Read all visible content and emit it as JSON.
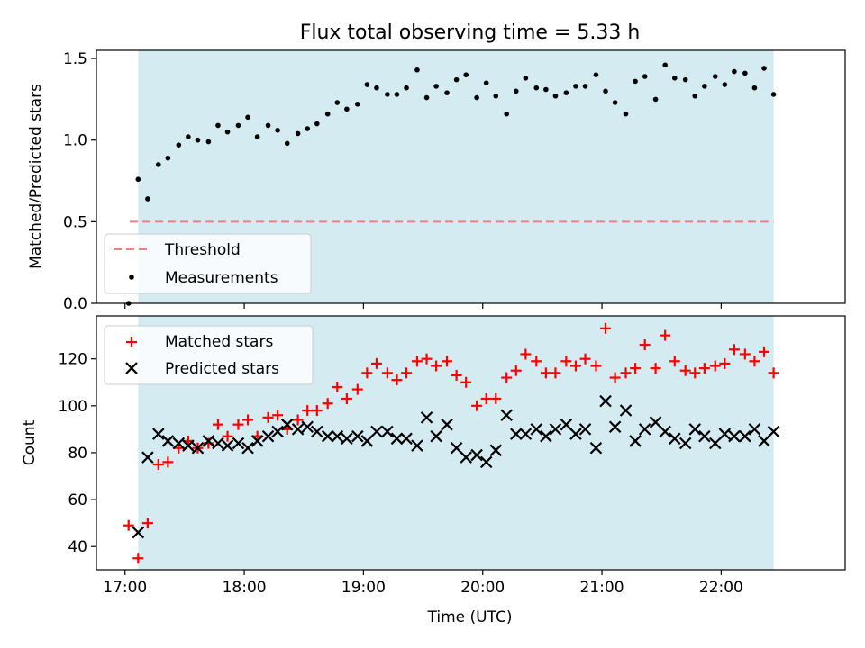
{
  "chart_data": [
    {
      "type": "scatter",
      "title": "Flux total observing time = 5.33 h",
      "xlabel": "",
      "ylabel": "Matched/Predicted stars",
      "x_ticks": [
        "17:00",
        "18:00",
        "19:00",
        "20:00",
        "21:00",
        "22:00"
      ],
      "y_ticks": [
        "0.0",
        "0.5",
        "1.0",
        "1.5"
      ],
      "xlim": [
        16.76,
        23.04
      ],
      "ylim": [
        0.0,
        1.55
      ],
      "shaded_span": [
        17.11,
        22.44
      ],
      "shade_color": "#add8e6",
      "legend_position": "lower-left",
      "threshold": {
        "name": "Threshold",
        "value": 0.5,
        "x_range": [
          17.04,
          22.44
        ],
        "color": "#f08080"
      },
      "series": [
        {
          "name": "Measurements",
          "color": "#000000",
          "x": [
            17.03,
            17.11,
            17.19,
            17.28,
            17.36,
            17.45,
            17.53,
            17.61,
            17.7,
            17.78,
            17.86,
            17.95,
            18.03,
            18.11,
            18.2,
            18.28,
            18.36,
            18.45,
            18.53,
            18.61,
            18.7,
            18.78,
            18.86,
            18.95,
            19.03,
            19.11,
            19.2,
            19.28,
            19.36,
            19.45,
            19.53,
            19.61,
            19.7,
            19.78,
            19.86,
            19.95,
            20.03,
            20.11,
            20.2,
            20.28,
            20.36,
            20.45,
            20.53,
            20.61,
            20.7,
            20.78,
            20.86,
            20.95,
            21.03,
            21.11,
            21.2,
            21.28,
            21.36,
            21.45,
            21.53,
            21.61,
            21.7,
            21.78,
            21.86,
            21.95,
            22.03,
            22.11,
            22.2,
            22.28,
            22.36,
            22.44
          ],
          "y": [
            0.0,
            0.76,
            0.64,
            0.85,
            0.89,
            0.97,
            1.02,
            1.0,
            0.99,
            1.09,
            1.05,
            1.09,
            1.14,
            1.02,
            1.09,
            1.06,
            0.98,
            1.04,
            1.07,
            1.1,
            1.16,
            1.23,
            1.19,
            1.22,
            1.34,
            1.32,
            1.28,
            1.28,
            1.32,
            1.43,
            1.26,
            1.33,
            1.29,
            1.37,
            1.4,
            1.26,
            1.35,
            1.27,
            1.16,
            1.3,
            1.38,
            1.32,
            1.31,
            1.27,
            1.29,
            1.33,
            1.33,
            1.4,
            1.3,
            1.23,
            1.16,
            1.36,
            1.39,
            1.25,
            1.46,
            1.38,
            1.37,
            1.27,
            1.33,
            1.39,
            1.34,
            1.42,
            1.41,
            1.32,
            1.44,
            1.28
          ]
        }
      ]
    },
    {
      "type": "scatter",
      "title": "",
      "xlabel": "Time (UTC)",
      "ylabel": "Count",
      "x_ticks": [
        "17:00",
        "18:00",
        "19:00",
        "20:00",
        "21:00",
        "22:00"
      ],
      "y_ticks": [
        "40",
        "60",
        "80",
        "100",
        "120"
      ],
      "xlim": [
        16.76,
        23.04
      ],
      "ylim": [
        30.1,
        138.3
      ],
      "shaded_span": [
        17.11,
        22.44
      ],
      "shade_color": "#add8e6",
      "legend_position": "top-left",
      "series": [
        {
          "name": "Matched stars",
          "marker": "+",
          "color": "#ff0000",
          "x": [
            17.03,
            17.11,
            17.19,
            17.28,
            17.36,
            17.45,
            17.53,
            17.61,
            17.7,
            17.78,
            17.86,
            17.95,
            18.03,
            18.11,
            18.2,
            18.28,
            18.36,
            18.45,
            18.53,
            18.61,
            18.7,
            18.78,
            18.86,
            18.95,
            19.03,
            19.11,
            19.2,
            19.28,
            19.36,
            19.45,
            19.53,
            19.61,
            19.7,
            19.78,
            19.86,
            19.95,
            20.03,
            20.11,
            20.2,
            20.28,
            20.36,
            20.45,
            20.53,
            20.61,
            20.7,
            20.78,
            20.86,
            20.95,
            21.03,
            21.11,
            21.2,
            21.28,
            21.36,
            21.45,
            21.53,
            21.61,
            21.7,
            21.78,
            21.86,
            21.95,
            22.03,
            22.11,
            22.2,
            22.28,
            22.36,
            22.44
          ],
          "y": [
            49,
            35,
            50,
            75,
            76,
            82,
            85,
            82,
            84,
            92,
            87,
            92,
            94,
            87,
            95,
            96,
            90,
            94,
            98,
            98,
            101,
            108,
            103,
            107,
            114,
            118,
            114,
            111,
            114,
            119,
            120,
            117,
            119,
            113,
            110,
            100,
            103,
            103,
            112,
            115,
            122,
            119,
            114,
            114,
            119,
            117,
            120,
            117,
            133,
            112,
            114,
            116,
            126,
            116,
            130,
            119,
            115,
            114,
            116,
            117,
            118,
            124,
            122,
            119,
            123,
            114
          ]
        },
        {
          "name": "Predicted stars",
          "marker": "x",
          "color": "#000000",
          "x": [
            17.11,
            17.19,
            17.28,
            17.36,
            17.45,
            17.53,
            17.61,
            17.7,
            17.78,
            17.86,
            17.95,
            18.03,
            18.11,
            18.2,
            18.28,
            18.36,
            18.45,
            18.53,
            18.61,
            18.7,
            18.78,
            18.86,
            18.95,
            19.03,
            19.11,
            19.2,
            19.28,
            19.36,
            19.45,
            19.53,
            19.61,
            19.7,
            19.78,
            19.86,
            19.95,
            20.03,
            20.11,
            20.2,
            20.28,
            20.36,
            20.45,
            20.53,
            20.61,
            20.7,
            20.78,
            20.86,
            20.95,
            21.03,
            21.11,
            21.2,
            21.28,
            21.36,
            21.45,
            21.53,
            21.61,
            21.7,
            21.78,
            21.86,
            21.95,
            22.03,
            22.11,
            22.2,
            22.28,
            22.36,
            22.44
          ],
          "y": [
            46,
            78,
            88,
            85,
            84,
            83,
            82,
            85,
            84,
            83,
            84,
            82,
            85,
            87,
            89,
            92,
            90,
            91,
            89,
            87,
            87,
            86,
            87,
            85,
            89,
            89,
            86,
            86,
            83,
            95,
            87,
            92,
            82,
            78,
            79,
            76,
            81,
            96,
            88,
            88,
            90,
            87,
            90,
            92,
            88,
            90,
            82,
            102,
            91,
            98,
            85,
            90,
            93,
            89,
            86,
            84,
            90,
            87,
            84,
            88,
            87,
            87,
            90,
            85,
            89
          ]
        }
      ]
    }
  ]
}
